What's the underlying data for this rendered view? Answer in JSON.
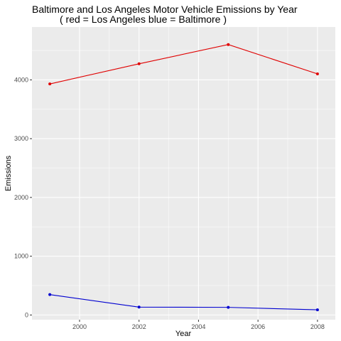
{
  "chart_data": {
    "type": "line",
    "title": "Baltimore and Los Angeles Motor Vehicle Emissions by Year",
    "subtitle": "( red = Los Angeles blue = Baltimore )",
    "xlabel": "Year",
    "ylabel": "Emissions",
    "x": [
      1999,
      2002,
      2005,
      2008
    ],
    "xlim": [
      1998.4,
      2008.6
    ],
    "ylim": [
      -80,
      4900
    ],
    "x_ticks": [
      2000,
      2002,
      2004,
      2006,
      2008
    ],
    "y_ticks": [
      0,
      1000,
      2000,
      3000,
      4000
    ],
    "grid": true,
    "legend": "none",
    "series": [
      {
        "values": [
          3931,
          4274,
          4601,
          4102
        ],
        "color": "#e00000"
      },
      {
        "values": [
          347,
          134,
          130,
          88
        ],
        "color": "#0000d0"
      }
    ],
    "panel_color": "#ebebeb",
    "grid_color": "#ffffff"
  }
}
